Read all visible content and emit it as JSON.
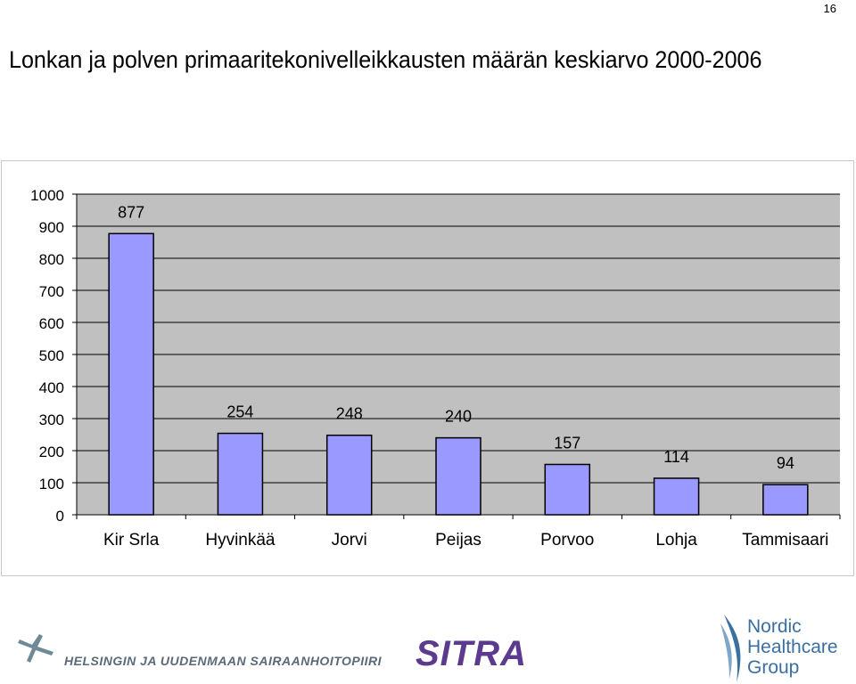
{
  "page_number": "16",
  "chart_data": {
    "type": "bar",
    "title": "Lonkan ja polven primaaritekonivelleikkausten määrän keskiarvo 2000-2006",
    "categories": [
      "Kir Srla",
      "Hyvinkää",
      "Jorvi",
      "Peijas",
      "Porvoo",
      "Lohja",
      "Tammisaari"
    ],
    "values": [
      877,
      254,
      248,
      240,
      157,
      114,
      94
    ],
    "data_labels": [
      "877",
      "254",
      "248",
      "240",
      "157",
      "114",
      "94"
    ],
    "ylim": [
      0,
      1000
    ],
    "yticks": [
      "0",
      "100",
      "200",
      "300",
      "400",
      "500",
      "600",
      "700",
      "800",
      "900",
      "1000"
    ],
    "xlabel": "",
    "ylabel": "",
    "grid": true,
    "legend": "none",
    "colors": {
      "bar": "#9999ff",
      "plot_bg": "#c0c0c0",
      "grid": "#000000"
    }
  },
  "logos": {
    "hus": "HELSINGIN JA UUDENMAAN SAIRAANHOITOPIIRI",
    "sitra": "SITRA",
    "nhg_line1": "Nordic",
    "nhg_line2": "Healthcare",
    "nhg_line3": "Group"
  }
}
